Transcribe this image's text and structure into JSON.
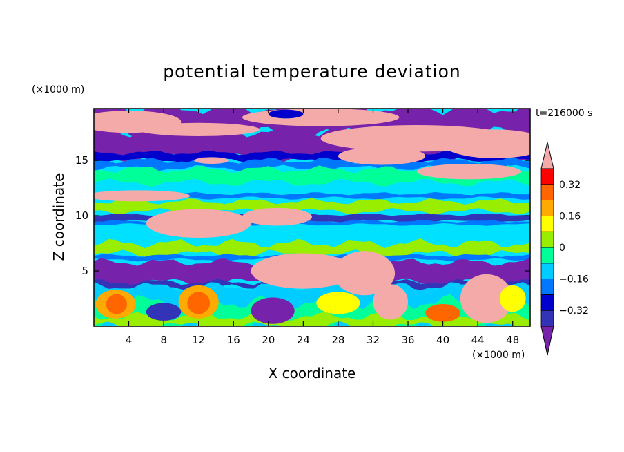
{
  "chart_data": {
    "type": "heatmap",
    "title": "potential temperature deviation",
    "xlabel": "X coordinate",
    "ylabel": "Z coordinate",
    "x_unit": "(×1000 m)",
    "y_unit": "(×1000 m)",
    "time_label": "t=216000 s",
    "xlim": [
      0,
      50
    ],
    "ylim": [
      0,
      19.7
    ],
    "x_ticks": [
      4,
      8,
      12,
      16,
      20,
      24,
      28,
      32,
      36,
      40,
      44,
      48
    ],
    "y_ticks": [
      5,
      10,
      15
    ],
    "colorbar": {
      "levels": [
        -0.4,
        -0.32,
        -0.24,
        -0.16,
        -0.08,
        0,
        0.08,
        0.16,
        0.24,
        0.32,
        0.4
      ],
      "tick_labels": [
        {
          "value": -0.32,
          "label": "−0.32"
        },
        {
          "value": -0.16,
          "label": "−0.16"
        },
        {
          "value": 0,
          "label": "0"
        },
        {
          "value": 0.16,
          "label": "0.16"
        },
        {
          "value": 0.32,
          "label": "0.32"
        }
      ],
      "colors": [
        "#3333b8",
        "#0000cc",
        "#0077ff",
        "#00ccff",
        "#00ff99",
        "#99ee00",
        "#ffff00",
        "#ffaa00",
        "#ff6600",
        "#ff0000"
      ],
      "under_color": "#7722aa",
      "over_color": "#f5aaaa"
    }
  }
}
